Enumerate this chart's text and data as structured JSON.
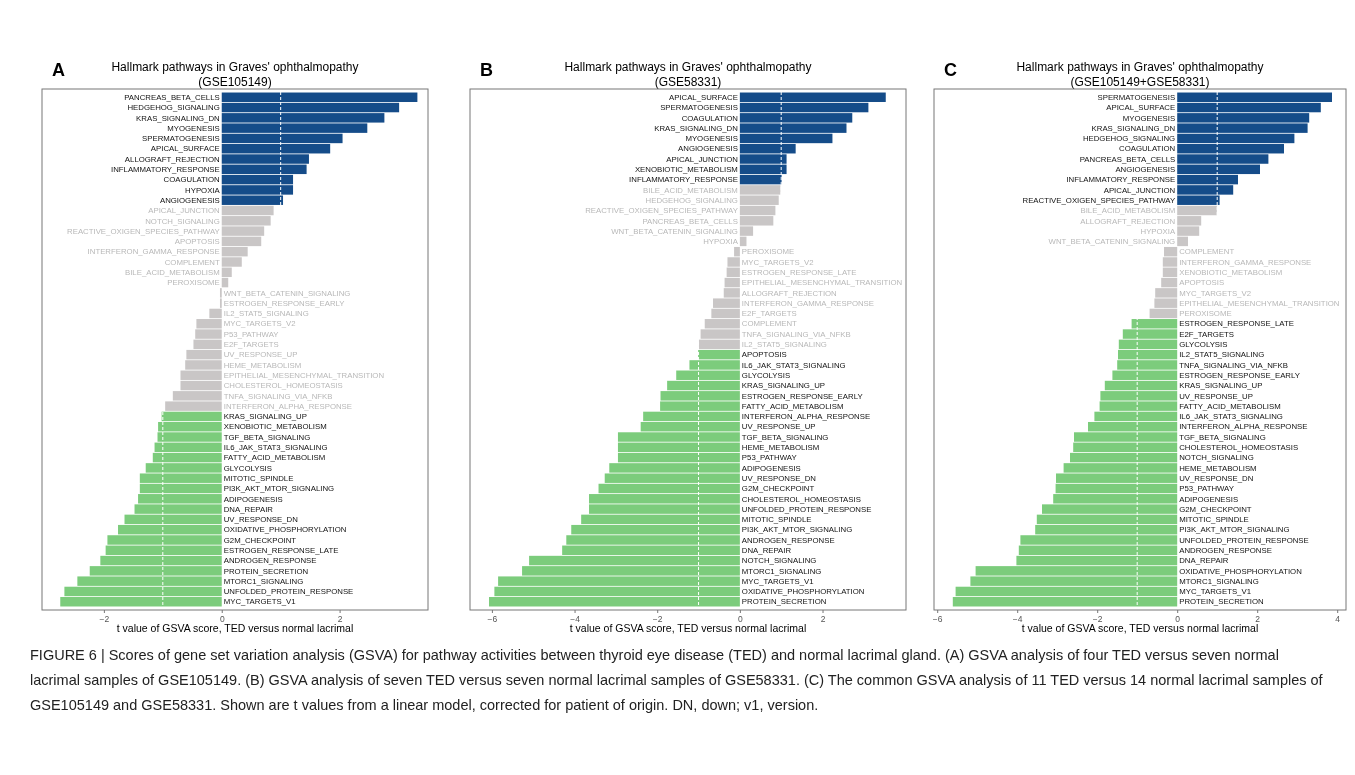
{
  "chart_data": [
    {
      "type": "bar",
      "orientation": "horizontal",
      "title": "Hallmark pathways in Graves' ophthalmopathy",
      "subtitle": "(GSE105149)",
      "xlabel": "t value of GSVA score, TED versus normal lacrimal",
      "annotations": [
        "A"
      ],
      "categories": [
        "PANCREAS_BETA_CELLS",
        "HEDGEHOG_SIGNALING",
        "KRAS_SIGNALING_DN",
        "MYOGENESIS",
        "SPERMATOGENESIS",
        "APICAL_SURFACE",
        "ALLOGRAFT_REJECTION",
        "INFLAMMATORY_RESPONSE",
        "COAGULATION",
        "HYPOXIA",
        "ANGIOGENESIS",
        "APICAL_JUNCTION",
        "NOTCH_SIGNALING",
        "REACTIVE_OXIGEN_SPECIES_PATHWAY",
        "APOPTOSIS",
        "INTERFERON_GAMMA_RESPONSE",
        "COMPLEMENT",
        "BILE_ACID_METABOLISM",
        "PEROXISOME",
        "WNT_BETA_CATENIN_SIGNALING",
        "ESTROGEN_RESPONSE_EARLY",
        "IL2_STAT5_SIGNALING",
        "MYC_TARGETS_V2",
        "P53_PATHWAY",
        "E2F_TARGETS",
        "UV_RESPONSE_UP",
        "HEME_METABOLISM",
        "EPITHELIAL_MESENCHYMAL_TRANSITION",
        "CHOLESTEROL_HOMEOSTASIS",
        "TNFA_SIGNALING_VIA_NFKB",
        "INTERFERON_ALPHA_RESPONSE",
        "KRAS_SIGNALING_UP",
        "XENOBIOTIC_METABOLISM",
        "TGF_BETA_SIGNALING",
        "IL6_JAK_STAT3_SIGNALING",
        "FATTY_ACID_METABOLISM",
        "GLYCOLYSIS",
        "MITOTIC_SPINDLE",
        "PI3K_AKT_MTOR_SIGNALING",
        "ADIPOGENESIS",
        "DNA_REPAIR",
        "UV_RESPONSE_DN",
        "OXIDATIVE_PHOSPHORYLATION",
        "G2M_CHECKPOINT",
        "ESTROGEN_RESPONSE_LATE",
        "ANDROGEN_RESPONSE",
        "PROTEIN_SECRETION",
        "MTORC1_SIGNALING",
        "UNFOLDED_PROTEIN_RESPONSE",
        "MYC_TARGETS_V1"
      ],
      "values": [
        3.32,
        3.01,
        2.76,
        2.47,
        2.05,
        1.84,
        1.48,
        1.44,
        1.21,
        1.21,
        1.04,
        0.88,
        0.83,
        0.72,
        0.67,
        0.44,
        0.34,
        0.17,
        0.11,
        -0.03,
        -0.03,
        -0.21,
        -0.43,
        -0.45,
        -0.48,
        -0.6,
        -0.62,
        -0.7,
        -0.7,
        -0.83,
        -0.96,
        -1.02,
        -1.08,
        -1.09,
        -1.14,
        -1.17,
        -1.29,
        -1.39,
        -1.39,
        -1.42,
        -1.48,
        -1.65,
        -1.76,
        -1.94,
        -1.97,
        -2.06,
        -2.24,
        -2.45,
        -2.67,
        -2.74
      ],
      "colors": [
        "#154c89",
        "#154c89",
        "#154c89",
        "#154c89",
        "#154c89",
        "#154c89",
        "#154c89",
        "#154c89",
        "#154c89",
        "#154c89",
        "#154c89",
        "#c9c6c6",
        "#c9c6c6",
        "#c9c6c6",
        "#c9c6c6",
        "#c9c6c6",
        "#c9c6c6",
        "#c9c6c6",
        "#c9c6c6",
        "#c9c6c6",
        "#c9c6c6",
        "#c9c6c6",
        "#c9c6c6",
        "#c9c6c6",
        "#c9c6c6",
        "#c9c6c6",
        "#c9c6c6",
        "#c9c6c6",
        "#c9c6c6",
        "#c9c6c6",
        "#c9c6c6",
        "#7ccc7c",
        "#7ccc7c",
        "#7ccc7c",
        "#7ccc7c",
        "#7ccc7c",
        "#7ccc7c",
        "#7ccc7c",
        "#7ccc7c",
        "#7ccc7c",
        "#7ccc7c",
        "#7ccc7c",
        "#7ccc7c",
        "#7ccc7c",
        "#7ccc7c",
        "#7ccc7c",
        "#7ccc7c",
        "#7ccc7c",
        "#7ccc7c",
        "#7ccc7c"
      ],
      "xlim": [
        -3.05,
        3.5
      ],
      "xticks": [
        -2,
        0,
        2
      ],
      "ref_lines": [
        {
          "axis": "x",
          "value": -1,
          "color": "#ffffff",
          "line_style": "dashed"
        },
        {
          "axis": "x",
          "value": 1,
          "color": "#ffffff",
          "line_style": "dashed"
        }
      ]
    },
    {
      "type": "bar",
      "orientation": "horizontal",
      "title": "Hallmark pathways in Graves' ophthalmopathy",
      "subtitle": "(GSE58331)",
      "xlabel": "t value of GSVA score, TED versus normal lacrimal",
      "annotations": [
        "B"
      ],
      "categories": [
        "APICAL_SURFACE",
        "SPERMATOGENESIS",
        "COAGULATION",
        "KRAS_SIGNALING_DN",
        "MYOGENESIS",
        "ANGIOGENESIS",
        "APICAL_JUNCTION",
        "XENOBIOTIC_METABOLISM",
        "INFLAMMATORY_RESPONSE",
        "BILE_ACID_METABOLISM",
        "HEDGEHOG_SIGNALING",
        "REACTIVE_OXIGEN_SPECIES_PATHWAY",
        "PANCREAS_BETA_CELLS",
        "WNT_BETA_CATENIN_SIGNALING",
        "HYPOXIA",
        "PEROXISOME",
        "MYC_TARGETS_V2",
        "ESTROGEN_RESPONSE_LATE",
        "EPITHELIAL_MESENCHYMAL_TRANSITION",
        "ALLOGRAFT_REJECTION",
        "INTERFERON_GAMMA_RESPONSE",
        "E2F_TARGETS",
        "COMPLEMENT",
        "TNFA_SIGNALING_VIA_NFKB",
        "IL2_STAT5_SIGNALING",
        "APOPTOSIS",
        "IL6_JAK_STAT3_SIGNALING",
        "GLYCOLYSIS",
        "KRAS_SIGNALING_UP",
        "ESTROGEN_RESPONSE_EARLY",
        "FATTY_ACID_METABOLISM",
        "INTERFERON_ALPHA_RESPONSE",
        "UV_RESPONSE_UP",
        "TGF_BETA_SIGNALING",
        "HEME_METABOLISM",
        "P53_PATHWAY",
        "ADIPOGENESIS",
        "UV_RESPONSE_DN",
        "G2M_CHECKPOINT",
        "CHOLESTEROL_HOMEOSTASIS",
        "UNFOLDED_PROTEIN_RESPONSE",
        "MITOTIC_SPINDLE",
        "PI3K_AKT_MTOR_SIGNALING",
        "ANDROGEN_RESPONSE",
        "DNA_REPAIR",
        "NOTCH_SIGNALING",
        "MTORC1_SIGNALING",
        "MYC_TARGETS_V1",
        "OXIDATIVE_PHOSPHORYLATION",
        "PROTEIN_SECRETION"
      ],
      "values": [
        3.53,
        3.11,
        2.72,
        2.58,
        2.24,
        1.35,
        1.13,
        1.13,
        1.01,
        0.98,
        0.94,
        0.86,
        0.81,
        0.32,
        0.16,
        -0.14,
        -0.3,
        -0.32,
        -0.37,
        -0.39,
        -0.65,
        -0.69,
        -0.85,
        -0.95,
        -0.99,
        -1.01,
        -1.22,
        -1.54,
        -1.76,
        -1.92,
        -1.93,
        -2.34,
        -2.4,
        -2.95,
        -2.95,
        -2.95,
        -3.16,
        -3.27,
        -3.42,
        -3.65,
        -3.65,
        -3.84,
        -4.08,
        -4.2,
        -4.3,
        -5.1,
        -5.27,
        -5.85,
        -5.94,
        -6.07
      ],
      "colors": [
        "#154c89",
        "#154c89",
        "#154c89",
        "#154c89",
        "#154c89",
        "#154c89",
        "#154c89",
        "#154c89",
        "#154c89",
        "#c9c6c6",
        "#c9c6c6",
        "#c9c6c6",
        "#c9c6c6",
        "#c9c6c6",
        "#c9c6c6",
        "#c9c6c6",
        "#c9c6c6",
        "#c9c6c6",
        "#c9c6c6",
        "#c9c6c6",
        "#c9c6c6",
        "#c9c6c6",
        "#c9c6c6",
        "#c9c6c6",
        "#c9c6c6",
        "#7ccc7c",
        "#7ccc7c",
        "#7ccc7c",
        "#7ccc7c",
        "#7ccc7c",
        "#7ccc7c",
        "#7ccc7c",
        "#7ccc7c",
        "#7ccc7c",
        "#7ccc7c",
        "#7ccc7c",
        "#7ccc7c",
        "#7ccc7c",
        "#7ccc7c",
        "#7ccc7c",
        "#7ccc7c",
        "#7ccc7c",
        "#7ccc7c",
        "#7ccc7c",
        "#7ccc7c",
        "#7ccc7c",
        "#7ccc7c",
        "#7ccc7c",
        "#7ccc7c",
        "#7ccc7c"
      ],
      "xlim": [
        -6.53,
        4.02
      ],
      "xticks": [
        -6,
        -4,
        -2,
        0,
        2
      ],
      "ref_lines": [
        {
          "axis": "x",
          "value": -1,
          "color": "#ffffff",
          "line_style": "dashed"
        },
        {
          "axis": "x",
          "value": 1,
          "color": "#ffffff",
          "line_style": "dashed"
        }
      ]
    },
    {
      "type": "bar",
      "orientation": "horizontal",
      "title": "Hallmark pathways in Graves' ophthalmopathy",
      "subtitle": "(GSE105149+GSE58331)",
      "xlabel": "t value of GSVA score, TED versus normal lacrimal",
      "annotations": [
        "C"
      ],
      "categories": [
        "SPERMATOGENESIS",
        "APICAL_SURFACE",
        "MYOGENESIS",
        "KRAS_SIGNALING_DN",
        "HEDGEHOG_SIGNALING",
        "COAGULATION",
        "PANCREAS_BETA_CELLS",
        "ANGIOGENESIS",
        "INFLAMMATORY_RESPONSE",
        "APICAL_JUNCTION",
        "REACTIVE_OXIGEN_SPECIES_PATHWAY",
        "BILE_ACID_METABOLISM",
        "ALLOGRAFT_REJECTION",
        "HYPOXIA",
        "WNT_BETA_CATENIN_SIGNALING",
        "COMPLEMENT",
        "INTERFERON_GAMMA_RESPONSE",
        "XENOBIOTIC_METABOLISM",
        "APOPTOSIS",
        "MYC_TARGETS_V2",
        "EPITHELIAL_MESENCHYMAL_TRANSITION",
        "PEROXISOME",
        "ESTROGEN_RESPONSE_LATE",
        "E2F_TARGETS",
        "GLYCOLYSIS",
        "IL2_STAT5_SIGNALING",
        "TNFA_SIGNALING_VIA_NFKB",
        "ESTROGEN_RESPONSE_EARLY",
        "KRAS_SIGNALING_UP",
        "UV_RESPONSE_UP",
        "FATTY_ACID_METABOLISM",
        "IL6_JAK_STAT3_SIGNALING",
        "INTERFERON_ALPHA_RESPONSE",
        "TGF_BETA_SIGNALING",
        "CHOLESTEROL_HOMEOSTASIS",
        "NOTCH_SIGNALING",
        "HEME_METABOLISM",
        "UV_RESPONSE_DN",
        "P53_PATHWAY",
        "ADIPOGENESIS",
        "G2M_CHECKPOINT",
        "MITOTIC_SPINDLE",
        "PI3K_AKT_MTOR_SIGNALING",
        "UNFOLDED_PROTEIN_RESPONSE",
        "ANDROGEN_RESPONSE",
        "DNA_REPAIR",
        "OXIDATIVE_PHOSPHORYLATION",
        "MTORC1_SIGNALING",
        "MYC_TARGETS_V1",
        "PROTEIN_SECRETION"
      ],
      "values": [
        3.87,
        3.59,
        3.3,
        3.26,
        2.93,
        2.67,
        2.28,
        2.07,
        1.52,
        1.4,
        1.06,
        0.99,
        0.6,
        0.55,
        0.27,
        -0.33,
        -0.36,
        -0.36,
        -0.4,
        -0.55,
        -0.57,
        -0.69,
        -1.14,
        -1.36,
        -1.46,
        -1.48,
        -1.5,
        -1.62,
        -1.81,
        -1.92,
        -1.94,
        -2.07,
        -2.23,
        -2.58,
        -2.6,
        -2.68,
        -2.84,
        -3.03,
        -3.04,
        -3.1,
        -3.38,
        -3.51,
        -3.55,
        -3.92,
        -3.96,
        -4.02,
        -5.04,
        -5.17,
        -5.54,
        -5.61
      ],
      "colors": [
        "#154c89",
        "#154c89",
        "#154c89",
        "#154c89",
        "#154c89",
        "#154c89",
        "#154c89",
        "#154c89",
        "#154c89",
        "#154c89",
        "#154c89",
        "#c9c6c6",
        "#c9c6c6",
        "#c9c6c6",
        "#c9c6c6",
        "#c9c6c6",
        "#c9c6c6",
        "#c9c6c6",
        "#c9c6c6",
        "#c9c6c6",
        "#c9c6c6",
        "#c9c6c6",
        "#7ccc7c",
        "#7ccc7c",
        "#7ccc7c",
        "#7ccc7c",
        "#7ccc7c",
        "#7ccc7c",
        "#7ccc7c",
        "#7ccc7c",
        "#7ccc7c",
        "#7ccc7c",
        "#7ccc7c",
        "#7ccc7c",
        "#7ccc7c",
        "#7ccc7c",
        "#7ccc7c",
        "#7ccc7c",
        "#7ccc7c",
        "#7ccc7c",
        "#7ccc7c",
        "#7ccc7c",
        "#7ccc7c",
        "#7ccc7c",
        "#7ccc7c",
        "#7ccc7c",
        "#7ccc7c",
        "#7ccc7c",
        "#7ccc7c",
        "#7ccc7c"
      ],
      "xlim": [
        -6.08,
        4.22
      ],
      "xticks": [
        -6,
        -4,
        -2,
        0,
        2,
        4
      ],
      "ref_lines": [
        {
          "axis": "x",
          "value": -1,
          "color": "#ffffff",
          "line_style": "dashed"
        },
        {
          "axis": "x",
          "value": 1,
          "color": "#ffffff",
          "line_style": "dashed"
        }
      ]
    },
    {
      "type": "other",
      "annotations": [
        "FIGURE 6 | Scores of gene set variation analysis (GSVA) for pathway activities between thyroid eye disease (TED) and normal lacrimal gland. (A) GSVA analysis of four TED versus seven normal lacrimal samples of GSE105149. (B) GSVA analysis of seven TED versus seven normal lacrimal samples of GSE58331. (C) The common GSVA analysis of 11 TED versus 14 normal lacrimal samples of GSE105149 and GSE58331. Shown are t values from a linear model, corrected for patient of origin. DN, down; v1, version."
      ]
    }
  ]
}
